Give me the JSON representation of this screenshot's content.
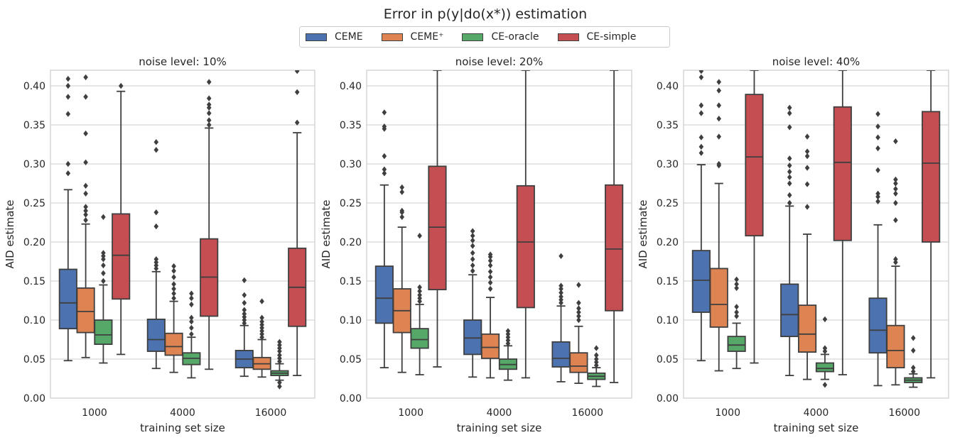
{
  "figure": {
    "title": "Error in p(y|do(x*)) estimation"
  },
  "colors": {
    "CEME": "#4c72b0",
    "CEME+": "#dd8452",
    "CE-oracle": "#55a868",
    "CE-simple": "#c44e52",
    "outline": "#3f3f3f",
    "grid": "#cccccc"
  },
  "legend": [
    {
      "key": "CEME",
      "label": "CEME"
    },
    {
      "key": "CEME+",
      "label": "CEME⁺"
    },
    {
      "key": "CE-oracle",
      "label": "CE-oracle"
    },
    {
      "key": "CE-simple",
      "label": "CE-simple"
    }
  ],
  "chart_data": [
    {
      "type": "box",
      "title": "noise level: 10%",
      "xlabel": "training set size",
      "ylabel": "AID estimate",
      "ylim": [
        0.0,
        0.42
      ],
      "yticks": [
        "0.00",
        "0.05",
        "0.10",
        "0.15",
        "0.20",
        "0.25",
        "0.30",
        "0.35",
        "0.40"
      ],
      "categories": [
        "1000",
        "4000",
        "16000"
      ],
      "series": [
        {
          "name": "CEME",
          "boxes": [
            {
              "whislo": 0.048,
              "q1": 0.089,
              "med": 0.122,
              "q3": 0.165,
              "whishi": 0.267,
              "fliers": [
                0.288,
                0.3,
                0.364,
                0.386,
                0.4,
                0.409
              ]
            },
            {
              "whislo": 0.038,
              "q1": 0.06,
              "med": 0.075,
              "q3": 0.101,
              "whishi": 0.162,
              "fliers": [
                0.166,
                0.17,
                0.174,
                0.178,
                0.22,
                0.238,
                0.318,
                0.328
              ]
            },
            {
              "whislo": 0.028,
              "q1": 0.039,
              "med": 0.05,
              "q3": 0.061,
              "whishi": 0.093,
              "fliers": [
                0.096,
                0.1,
                0.104,
                0.108,
                0.113,
                0.122,
                0.132,
                0.151
              ]
            }
          ]
        },
        {
          "name": "CEME+",
          "boxes": [
            {
              "whislo": 0.052,
              "q1": 0.084,
              "med": 0.111,
              "q3": 0.141,
              "whishi": 0.223,
              "fliers": [
                0.228,
                0.235,
                0.24,
                0.245,
                0.262,
                0.272,
                0.302,
                0.339,
                0.386,
                0.411
              ]
            },
            {
              "whislo": 0.033,
              "q1": 0.055,
              "med": 0.066,
              "q3": 0.083,
              "whishi": 0.124,
              "fliers": [
                0.128,
                0.134,
                0.14,
                0.146,
                0.155,
                0.163,
                0.169
              ]
            },
            {
              "whislo": 0.027,
              "q1": 0.037,
              "med": 0.044,
              "q3": 0.052,
              "whishi": 0.075,
              "fliers": [
                0.078,
                0.082,
                0.086,
                0.09,
                0.094,
                0.098,
                0.103,
                0.124
              ]
            }
          ]
        },
        {
          "name": "CE-oracle",
          "boxes": [
            {
              "whislo": 0.045,
              "q1": 0.069,
              "med": 0.081,
              "q3": 0.1,
              "whishi": 0.145,
              "fliers": [
                0.15,
                0.16,
                0.17,
                0.178,
                0.182,
                0.186,
                0.232
              ]
            },
            {
              "whislo": 0.026,
              "q1": 0.043,
              "med": 0.051,
              "q3": 0.058,
              "whishi": 0.078,
              "fliers": [
                0.082,
                0.09,
                0.098,
                0.103,
                0.12,
                0.128,
                0.134
              ]
            },
            {
              "whislo": 0.023,
              "q1": 0.029,
              "med": 0.032,
              "q3": 0.035,
              "whishi": 0.044,
              "fliers": [
                0.015,
                0.02,
                0.047,
                0.051,
                0.055,
                0.06,
                0.064,
                0.068,
                0.072
              ]
            }
          ]
        },
        {
          "name": "CE-simple",
          "boxes": [
            {
              "whislo": 0.056,
              "q1": 0.127,
              "med": 0.183,
              "q3": 0.236,
              "whishi": 0.393,
              "fliers": [
                0.4
              ]
            },
            {
              "whislo": 0.037,
              "q1": 0.105,
              "med": 0.155,
              "q3": 0.204,
              "whishi": 0.346,
              "fliers": [
                0.35,
                0.356,
                0.365,
                0.372,
                0.376,
                0.384,
                0.405
              ]
            },
            {
              "whislo": 0.029,
              "q1": 0.092,
              "med": 0.142,
              "q3": 0.192,
              "whishi": 0.34,
              "fliers": [
                0.353,
                0.392,
                0.419
              ]
            }
          ]
        }
      ]
    },
    {
      "type": "box",
      "title": "noise level: 20%",
      "xlabel": "training set size",
      "ylabel": "AID estimate",
      "ylim": [
        0.0,
        0.42
      ],
      "yticks": [
        "0.00",
        "0.05",
        "0.10",
        "0.15",
        "0.20",
        "0.25",
        "0.30",
        "0.35",
        "0.40"
      ],
      "categories": [
        "1000",
        "4000",
        "16000"
      ],
      "series": [
        {
          "name": "CEME",
          "boxes": [
            {
              "whislo": 0.039,
              "q1": 0.096,
              "med": 0.128,
              "q3": 0.169,
              "whishi": 0.273,
              "fliers": [
                0.288,
                0.293,
                0.31,
                0.345,
                0.348,
                0.366
              ]
            },
            {
              "whislo": 0.027,
              "q1": 0.056,
              "med": 0.077,
              "q3": 0.1,
              "whishi": 0.158,
              "fliers": [
                0.163,
                0.17,
                0.178,
                0.186,
                0.195,
                0.202,
                0.208,
                0.214
              ]
            },
            {
              "whislo": 0.021,
              "q1": 0.04,
              "med": 0.051,
              "q3": 0.072,
              "whishi": 0.118,
              "fliers": [
                0.122,
                0.126,
                0.13,
                0.135,
                0.14,
                0.144,
                0.182
              ]
            }
          ]
        },
        {
          "name": "CEME+",
          "boxes": [
            {
              "whislo": 0.033,
              "q1": 0.084,
              "med": 0.112,
              "q3": 0.14,
              "whishi": 0.219,
              "fliers": [
                0.232,
                0.238,
                0.24,
                0.264,
                0.27
              ]
            },
            {
              "whislo": 0.026,
              "q1": 0.051,
              "med": 0.065,
              "q3": 0.082,
              "whishi": 0.129,
              "fliers": [
                0.14,
                0.148,
                0.155,
                0.162,
                0.17,
                0.176,
                0.181,
                0.184
              ]
            },
            {
              "whislo": 0.019,
              "q1": 0.033,
              "med": 0.041,
              "q3": 0.058,
              "whishi": 0.092,
              "fliers": [
                0.1,
                0.105,
                0.11,
                0.115,
                0.122,
                0.145
              ]
            }
          ]
        },
        {
          "name": "CE-oracle",
          "boxes": [
            {
              "whislo": 0.03,
              "q1": 0.064,
              "med": 0.075,
              "q3": 0.089,
              "whishi": 0.12,
              "fliers": [
                0.124,
                0.128,
                0.132,
                0.137,
                0.142,
                0.208
              ]
            },
            {
              "whislo": 0.023,
              "q1": 0.037,
              "med": 0.043,
              "q3": 0.05,
              "whishi": 0.067,
              "fliers": [
                0.07,
                0.074,
                0.078,
                0.082,
                0.086
              ]
            },
            {
              "whislo": 0.015,
              "q1": 0.024,
              "med": 0.028,
              "q3": 0.032,
              "whishi": 0.039,
              "fliers": [
                0.042,
                0.046,
                0.05,
                0.055,
                0.064
              ]
            }
          ]
        },
        {
          "name": "CE-simple",
          "boxes": [
            {
              "whislo": 0.04,
              "q1": 0.139,
              "med": 0.219,
              "q3": 0.297,
              "whishi": 0.42,
              "fliers": []
            },
            {
              "whislo": 0.026,
              "q1": 0.116,
              "med": 0.2,
              "q3": 0.272,
              "whishi": 0.42,
              "fliers": []
            },
            {
              "whislo": 0.02,
              "q1": 0.112,
              "med": 0.191,
              "q3": 0.273,
              "whishi": 0.42,
              "fliers": []
            }
          ]
        }
      ]
    },
    {
      "type": "box",
      "title": "noise level: 40%",
      "xlabel": "training set size",
      "ylabel": "AID estimate",
      "ylim": [
        0.0,
        0.42
      ],
      "yticks": [
        "0.00",
        "0.05",
        "0.10",
        "0.15",
        "0.20",
        "0.25",
        "0.30",
        "0.35",
        "0.40"
      ],
      "categories": [
        "1000",
        "4000",
        "16000"
      ],
      "series": [
        {
          "name": "CEME",
          "boxes": [
            {
              "whislo": 0.048,
              "q1": 0.11,
              "med": 0.151,
              "q3": 0.189,
              "whishi": 0.299,
              "fliers": [
                0.314,
                0.322,
                0.334,
                0.365,
                0.375,
                0.411,
                0.419
              ]
            },
            {
              "whislo": 0.029,
              "q1": 0.079,
              "med": 0.107,
              "q3": 0.146,
              "whishi": 0.246,
              "fliers": [
                0.25,
                0.26,
                0.275,
                0.283,
                0.29,
                0.298,
                0.307,
                0.347,
                0.365,
                0.372
              ]
            },
            {
              "whislo": 0.016,
              "q1": 0.058,
              "med": 0.087,
              "q3": 0.128,
              "whishi": 0.222,
              "fliers": [
                0.252,
                0.258,
                0.262,
                0.292,
                0.32,
                0.334,
                0.348,
                0.364
              ]
            }
          ]
        },
        {
          "name": "CEME+",
          "boxes": [
            {
              "whislo": 0.035,
              "q1": 0.091,
              "med": 0.12,
              "q3": 0.166,
              "whishi": 0.275,
              "fliers": [
                0.298,
                0.3,
                0.335,
                0.358,
                0.375,
                0.394,
                0.405
              ]
            },
            {
              "whislo": 0.024,
              "q1": 0.059,
              "med": 0.082,
              "q3": 0.119,
              "whishi": 0.21,
              "fliers": [
                0.245,
                0.274,
                0.295,
                0.31,
                0.316,
                0.335
              ]
            },
            {
              "whislo": 0.017,
              "q1": 0.039,
              "med": 0.061,
              "q3": 0.093,
              "whishi": 0.169,
              "fliers": [
                0.174,
                0.178,
                0.228,
                0.25,
                0.262,
                0.268,
                0.275,
                0.28,
                0.329
              ]
            }
          ]
        },
        {
          "name": "CE-oracle",
          "boxes": [
            {
              "whislo": 0.038,
              "q1": 0.06,
              "med": 0.068,
              "q3": 0.079,
              "whishi": 0.096,
              "fliers": [
                0.105,
                0.11,
                0.117,
                0.141,
                0.146,
                0.152
              ]
            },
            {
              "whislo": 0.024,
              "q1": 0.034,
              "med": 0.038,
              "q3": 0.045,
              "whishi": 0.056,
              "fliers": [
                0.017,
                0.06,
                0.064,
                0.101
              ]
            },
            {
              "whislo": 0.014,
              "q1": 0.02,
              "med": 0.023,
              "q3": 0.026,
              "whishi": 0.031,
              "fliers": [
                0.034,
                0.039,
                0.061,
                0.077
              ]
            }
          ]
        },
        {
          "name": "CE-simple",
          "boxes": [
            {
              "whislo": 0.045,
              "q1": 0.208,
              "med": 0.309,
              "q3": 0.389,
              "whishi": 0.42,
              "fliers": []
            },
            {
              "whislo": 0.03,
              "q1": 0.202,
              "med": 0.302,
              "q3": 0.373,
              "whishi": 0.42,
              "fliers": []
            },
            {
              "whislo": 0.026,
              "q1": 0.2,
              "med": 0.301,
              "q3": 0.367,
              "whishi": 0.42,
              "fliers": []
            }
          ]
        }
      ]
    }
  ]
}
